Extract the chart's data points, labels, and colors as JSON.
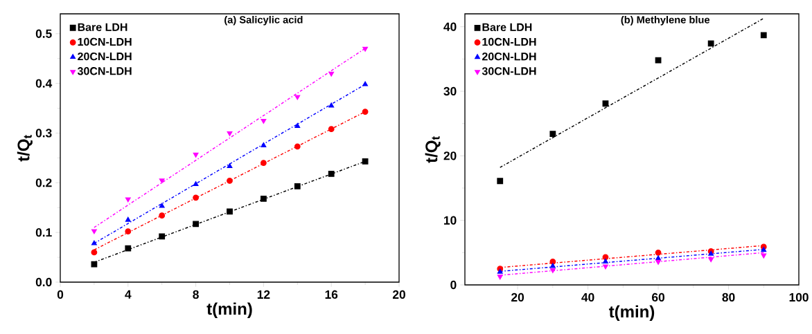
{
  "chart_data": [
    {
      "type": "scatter",
      "title": "(a) Salicylic acid",
      "xlabel": "t(min)",
      "ylabel": "t/Q$_{t}$",
      "xlim": [
        0,
        20
      ],
      "ylim": [
        0,
        0.54
      ],
      "xticks": [
        0,
        4,
        8,
        12,
        16,
        20
      ],
      "yticks": [
        {
          "value": 0,
          "label": "0.0"
        },
        0.1,
        0.2,
        0.3,
        0.4,
        0.5
      ],
      "legend": "top left",
      "series": [
        {
          "type": "line",
          "color": "#000000",
          "line_style": "dashed",
          "x": [
            2,
            18
          ],
          "values": [
            0.04,
            0.243
          ]
        },
        {
          "type": "line",
          "color": "#ff0000",
          "line_style": "dashed",
          "x": [
            2,
            18
          ],
          "values": [
            0.065,
            0.343
          ]
        },
        {
          "type": "line",
          "color": "#0000ff",
          "line_style": "dashed",
          "x": [
            2,
            18
          ],
          "values": [
            0.078,
            0.398
          ]
        },
        {
          "type": "line",
          "color": "#ff00ff",
          "line_style": "dashed",
          "x": [
            2,
            18.2
          ],
          "values": [
            0.11,
            0.475
          ]
        },
        {
          "name": "Bare LDH",
          "color": "#000000",
          "marker": "square",
          "x": [
            2,
            4,
            6,
            8,
            10,
            12,
            14,
            16,
            18
          ],
          "values": [
            0.036,
            0.068,
            0.092,
            0.117,
            0.142,
            0.168,
            0.193,
            0.218,
            0.243
          ]
        },
        {
          "name": "10CN-LDH",
          "color": "#ff0000",
          "marker": "circle",
          "x": [
            2,
            4,
            6,
            8,
            10,
            12,
            14,
            16,
            18
          ],
          "values": [
            0.06,
            0.102,
            0.134,
            0.17,
            0.204,
            0.24,
            0.273,
            0.308,
            0.343
          ]
        },
        {
          "name": "20CN-LDH",
          "color": "#0000ff",
          "marker": "triangle",
          "x": [
            2,
            4,
            6,
            8,
            10,
            12,
            14,
            16,
            18
          ],
          "values": [
            0.078,
            0.125,
            0.153,
            0.197,
            0.233,
            0.275,
            0.314,
            0.355,
            0.398
          ]
        },
        {
          "name": "30CN-LDH",
          "color": "#ff00ff",
          "marker": "triangle-down",
          "x": [
            2,
            4,
            6,
            8,
            10,
            12,
            14,
            16,
            18
          ],
          "values": [
            0.103,
            0.167,
            0.205,
            0.257,
            0.3,
            0.325,
            0.373,
            0.42,
            0.47
          ]
        }
      ]
    },
    {
      "type": "scatter",
      "title": "(b) Methylene blue",
      "xlabel": "t(min)",
      "ylabel": "t/Q$_{t}$",
      "xlim": [
        5,
        100
      ],
      "ylim": [
        0,
        42
      ],
      "xticks": [
        20,
        40,
        60,
        80,
        100
      ],
      "yticks": [
        0,
        10,
        20,
        30,
        40
      ],
      "legend": "top left",
      "series": [
        {
          "type": "line",
          "color": "#000000",
          "line_style": "dashed",
          "x": [
            15,
            90
          ],
          "values": [
            18.2,
            41.3
          ]
        },
        {
          "type": "line",
          "color": "#ff0000",
          "line_style": "dashed",
          "x": [
            15,
            90
          ],
          "values": [
            2.7,
            6.1
          ]
        },
        {
          "type": "line",
          "color": "#0000ff",
          "line_style": "dashed",
          "x": [
            15,
            90
          ],
          "values": [
            2.1,
            5.5
          ]
        },
        {
          "type": "line",
          "color": "#ff00ff",
          "line_style": "dashed",
          "x": [
            15,
            90
          ],
          "values": [
            1.5,
            5.0
          ]
        },
        {
          "name": "Bare LDH",
          "color": "#000000",
          "marker": "square",
          "x": [
            15,
            30,
            45,
            60,
            75,
            90
          ],
          "values": [
            16.1,
            23.4,
            28.1,
            34.8,
            37.4,
            38.7
          ]
        },
        {
          "name": "10CN-LDH",
          "color": "#ff0000",
          "marker": "circle",
          "x": [
            15,
            30,
            45,
            60,
            75,
            90
          ],
          "values": [
            2.5,
            3.6,
            4.3,
            5.0,
            5.2,
            5.9
          ]
        },
        {
          "name": "20CN-LDH",
          "color": "#0000ff",
          "marker": "triangle",
          "x": [
            15,
            30,
            45,
            60,
            75,
            90
          ],
          "values": [
            2.0,
            2.9,
            3.6,
            4.1,
            4.8,
            5.4
          ]
        },
        {
          "name": "30CN-LDH",
          "color": "#ff00ff",
          "marker": "triangle-down",
          "x": [
            15,
            30,
            45,
            60,
            75,
            90
          ],
          "values": [
            1.3,
            2.3,
            2.9,
            3.6,
            4.0,
            4.6
          ]
        }
      ]
    }
  ]
}
